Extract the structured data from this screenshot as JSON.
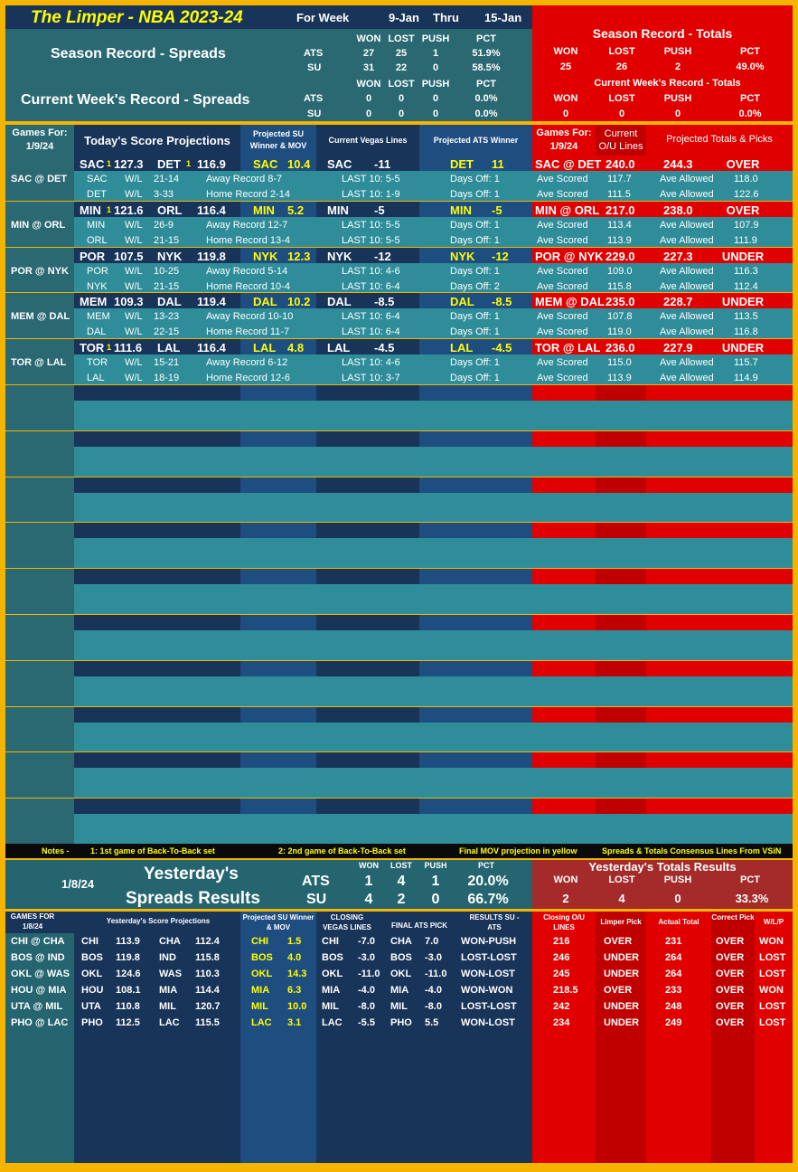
{
  "header": {
    "title": "The Limper - NBA 2023-24",
    "for_week": "For Week",
    "week_start": "9-Jan",
    "thru": "Thru",
    "week_end": "15-Jan"
  },
  "season_spreads": {
    "title": "Season Record - Spreads",
    "cols": [
      "WON",
      "LOST",
      "PUSH",
      "PCT"
    ],
    "rows": [
      {
        "label": "ATS",
        "won": "27",
        "lost": "25",
        "push": "1",
        "pct": "51.9%"
      },
      {
        "label": "SU",
        "won": "31",
        "lost": "22",
        "push": "0",
        "pct": "58.5%"
      }
    ]
  },
  "week_spreads": {
    "title": "Current Week's Record - Spreads",
    "cols": [
      "WON",
      "LOST",
      "PUSH",
      "PCT"
    ],
    "rows": [
      {
        "label": "ATS",
        "won": "0",
        "lost": "0",
        "push": "0",
        "pct": "0.0%"
      },
      {
        "label": "SU",
        "won": "0",
        "lost": "0",
        "push": "0",
        "pct": "0.0%"
      }
    ]
  },
  "season_totals": {
    "title": "Season Record - Totals",
    "cols": [
      "WON",
      "LOST",
      "PUSH",
      "PCT"
    ],
    "won": "25",
    "lost": "26",
    "push": "2",
    "pct": "49.0%"
  },
  "week_totals": {
    "title": "Current Week's Record - Totals",
    "cols": [
      "WON",
      "LOST",
      "PUSH",
      "PCT"
    ],
    "won": "0",
    "lost": "0",
    "push": "0",
    "pct": "0.0%"
  },
  "today": {
    "games_for": "Games For:",
    "date": "1/9/24",
    "score_proj": "Today's Score Projections",
    "su_winner": "Projected SU Winner & MOV",
    "vegas": "Current Vegas Lines",
    "ats_winner": "Projected ATS Winner",
    "games_for2": "Games For:",
    "date2": "1/9/24",
    "current_ou": "Current O/U Lines",
    "totals_picks": "Projected Totals & Picks"
  },
  "games": [
    {
      "name": "SAC @ DET",
      "away": "SAC",
      "away_b2b": "1",
      "away_score": "127.3",
      "home": "DET",
      "home_b2b": "1",
      "home_score": "116.9",
      "su": "SAC",
      "mov": "10.4",
      "line_team": "SAC",
      "line": "-11",
      "ats": "DET",
      "ats_val": "11",
      "match": "SAC @ DET",
      "ou": "240.0",
      "proj_total": "244.3",
      "pick": "OVER",
      "a_wl": "21-14",
      "a_rec": "Away Record 8-7",
      "a_last": "LAST 10: 5-5",
      "a_days": "Days Off: 1",
      "a_sc": "117.7",
      "a_al": "118.0",
      "h_wl": "3-33",
      "h_rec": "Home Record 2-14",
      "h_last": "LAST 10: 1-9",
      "h_days": "Days Off: 1",
      "h_sc": "111.5",
      "h_al": "122.6"
    },
    {
      "name": "MIN @ ORL",
      "away": "MIN",
      "away_b2b": "1",
      "away_score": "121.6",
      "home": "ORL",
      "home_b2b": "",
      "home_score": "116.4",
      "su": "MIN",
      "mov": "5.2",
      "line_team": "MIN",
      "line": "-5",
      "ats": "MIN",
      "ats_val": "-5",
      "match": "MIN @ ORL",
      "ou": "217.0",
      "proj_total": "238.0",
      "pick": "OVER",
      "a_wl": "26-9",
      "a_rec": "Away Record 12-7",
      "a_last": "LAST 10: 5-5",
      "a_days": "Days Off: 1",
      "a_sc": "113.4",
      "a_al": "107.9",
      "h_wl": "21-15",
      "h_rec": "Home Record 13-4",
      "h_last": "LAST 10: 5-5",
      "h_days": "Days Off: 1",
      "h_sc": "113.9",
      "h_al": "111.9"
    },
    {
      "name": "POR @ NYK",
      "away": "POR",
      "away_b2b": "",
      "away_score": "107.5",
      "home": "NYK",
      "home_b2b": "",
      "home_score": "119.8",
      "su": "NYK",
      "mov": "12.3",
      "line_team": "NYK",
      "line": "-12",
      "ats": "NYK",
      "ats_val": "-12",
      "match": "POR @ NYK",
      "ou": "229.0",
      "proj_total": "227.3",
      "pick": "UNDER",
      "a_wl": "10-25",
      "a_rec": "Away Record 5-14",
      "a_last": "LAST 10: 4-6",
      "a_days": "Days Off: 1",
      "a_sc": "109.0",
      "a_al": "116.3",
      "h_wl": "21-15",
      "h_rec": "Home Record 10-4",
      "h_last": "LAST 10: 6-4",
      "h_days": "Days Off: 2",
      "h_sc": "115.8",
      "h_al": "112.4"
    },
    {
      "name": "MEM @ DAL",
      "away": "MEM",
      "away_b2b": "",
      "away_score": "109.3",
      "home": "DAL",
      "home_b2b": "",
      "home_score": "119.4",
      "su": "DAL",
      "mov": "10.2",
      "line_team": "DAL",
      "line": "-8.5",
      "ats": "DAL",
      "ats_val": "-8.5",
      "match": "MEM @ DAL",
      "ou": "235.0",
      "proj_total": "228.7",
      "pick": "UNDER",
      "a_wl": "13-23",
      "a_rec": "Away Record 10-10",
      "a_last": "LAST 10: 6-4",
      "a_days": "Days Off: 1",
      "a_sc": "107.8",
      "a_al": "113.5",
      "h_wl": "22-15",
      "h_rec": "Home Record 11-7",
      "h_last": "LAST 10: 6-4",
      "h_days": "Days Off: 1",
      "h_sc": "119.0",
      "h_al": "116.8"
    },
    {
      "name": "TOR @ LAL",
      "away": "TOR",
      "away_b2b": "1",
      "away_score": "111.6",
      "home": "LAL",
      "home_b2b": "",
      "home_score": "116.4",
      "su": "LAL",
      "mov": "4.8",
      "line_team": "LAL",
      "line": "-4.5",
      "ats": "LAL",
      "ats_val": "-4.5",
      "match": "TOR @ LAL",
      "ou": "236.0",
      "proj_total": "227.9",
      "pick": "UNDER",
      "a_wl": "15-21",
      "a_rec": "Away Record 6-12",
      "a_last": "LAST 10: 4-6",
      "a_days": "Days Off: 1",
      "a_sc": "115.0",
      "a_al": "115.7",
      "h_wl": "18-19",
      "h_rec": "Home Record 12-6",
      "h_last": "LAST 10: 3-7",
      "h_days": "Days Off: 1",
      "h_sc": "113.9",
      "h_al": "114.9"
    }
  ],
  "labels": {
    "wl": "W/L",
    "ave_scored": "Ave Scored",
    "ave_allowed": "Ave Allowed"
  },
  "notes": {
    "prefix": "Notes -",
    "n1": "1: 1st game of Back-To-Back set",
    "n2": "2: 2nd game of Back-To-Back set",
    "n3": "Final MOV projection in yellow",
    "n4": "Spreads & Totals Consensus Lines From VSiN"
  },
  "yesterday": {
    "date": "1/8/24",
    "title1": "Yesterday's",
    "title2": "Spreads Results",
    "cols": [
      "WON",
      "LOST",
      "PUSH",
      "PCT"
    ],
    "ats": {
      "label": "ATS",
      "won": "1",
      "lost": "4",
      "push": "1",
      "pct": "20.0%"
    },
    "su": {
      "label": "SU",
      "won": "4",
      "lost": "2",
      "push": "0",
      "pct": "66.7%"
    },
    "totals_title": "Yesterday's Totals Results",
    "t_won": "2",
    "t_lost": "4",
    "t_push": "0",
    "t_pct": "33.3%"
  },
  "yheaders": {
    "games_for": "GAMES FOR",
    "date": "1/8/24",
    "score_proj": "Yesterday's Score Projections",
    "su": "Projected SU Winner & MOV",
    "closing": "CLOSING VEGAS LINES",
    "final_ats": "FINAL ATS PICK",
    "results": "RESULTS SU - ATS",
    "closing_ou": "Closing O/U LINES",
    "limper_pick": "Limper Pick",
    "actual_total": "Actual Total",
    "correct_pick": "Correct Pick",
    "wlp": "W/L/P"
  },
  "ygames": [
    {
      "name": "CHI @ CHA",
      "away": "CHI",
      "as": "113.9",
      "home": "CHA",
      "hs": "112.4",
      "su": "CHI",
      "mov": "1.5",
      "lt": "CHI",
      "line": "-7.0",
      "at": "CHA",
      "av": "7.0",
      "res": "WON-PUSH",
      "ou": "216",
      "pick": "OVER",
      "actual": "231",
      "correct": "OVER",
      "wlp": "WON"
    },
    {
      "name": "BOS @ IND",
      "away": "BOS",
      "as": "119.8",
      "home": "IND",
      "hs": "115.8",
      "su": "BOS",
      "mov": "4.0",
      "lt": "BOS",
      "line": "-3.0",
      "at": "BOS",
      "av": "-3.0",
      "res": "LOST-LOST",
      "ou": "246",
      "pick": "UNDER",
      "actual": "264",
      "correct": "OVER",
      "wlp": "LOST"
    },
    {
      "name": "OKL @ WAS",
      "away": "OKL",
      "as": "124.6",
      "home": "WAS",
      "hs": "110.3",
      "su": "OKL",
      "mov": "14.3",
      "lt": "OKL",
      "line": "-11.0",
      "at": "OKL",
      "av": "-11.0",
      "res": "WON-LOST",
      "ou": "245",
      "pick": "UNDER",
      "actual": "264",
      "correct": "OVER",
      "wlp": "LOST"
    },
    {
      "name": "HOU @ MIA",
      "away": "HOU",
      "as": "108.1",
      "home": "MIA",
      "hs": "114.4",
      "su": "MIA",
      "mov": "6.3",
      "lt": "MIA",
      "line": "-4.0",
      "at": "MIA",
      "av": "-4.0",
      "res": "WON-WON",
      "ou": "218.5",
      "pick": "OVER",
      "actual": "233",
      "correct": "OVER",
      "wlp": "WON"
    },
    {
      "name": "UTA @ MIL",
      "away": "UTA",
      "as": "110.8",
      "home": "MIL",
      "hs": "120.7",
      "su": "MIL",
      "mov": "10.0",
      "lt": "MIL",
      "line": "-8.0",
      "at": "MIL",
      "av": "-8.0",
      "res": "LOST-LOST",
      "ou": "242",
      "pick": "UNDER",
      "actual": "248",
      "correct": "OVER",
      "wlp": "LOST"
    },
    {
      "name": "PHO @ LAC",
      "away": "PHO",
      "as": "112.5",
      "home": "LAC",
      "hs": "115.5",
      "su": "LAC",
      "mov": "3.1",
      "lt": "LAC",
      "line": "-5.5",
      "at": "PHO",
      "av": "5.5",
      "res": "WON-LOST",
      "ou": "234",
      "pick": "UNDER",
      "actual": "249",
      "correct": "OVER",
      "wlp": "LOST"
    }
  ]
}
